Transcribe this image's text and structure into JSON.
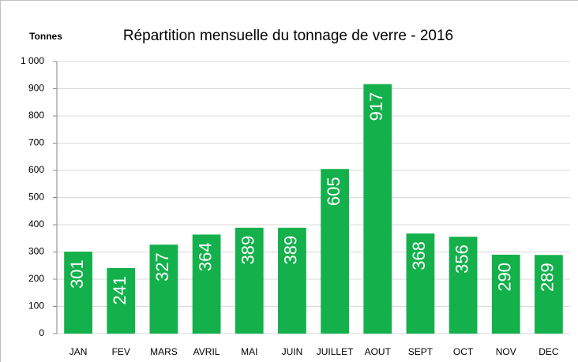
{
  "chart_data": {
    "type": "bar",
    "title": "Répartition mensuelle du tonnage de verre - 2016",
    "y_label": "Tonnes",
    "categories": [
      "JAN",
      "FEV",
      "MARS",
      "AVRIL",
      "MAI",
      "JUIN",
      "JUILLET",
      "AOUT",
      "SEPT",
      "OCT",
      "NOV",
      "DEC"
    ],
    "values": [
      301,
      241,
      327,
      364,
      389,
      389,
      605,
      917,
      368,
      356,
      290,
      289
    ],
    "color": "#13b04b",
    "ylim": [
      0,
      1000
    ],
    "yticks": [
      0,
      100,
      200,
      300,
      400,
      500,
      600,
      700,
      800,
      900,
      {
        "value": 1000,
        "label": "1 000"
      }
    ],
    "grid": true
  }
}
